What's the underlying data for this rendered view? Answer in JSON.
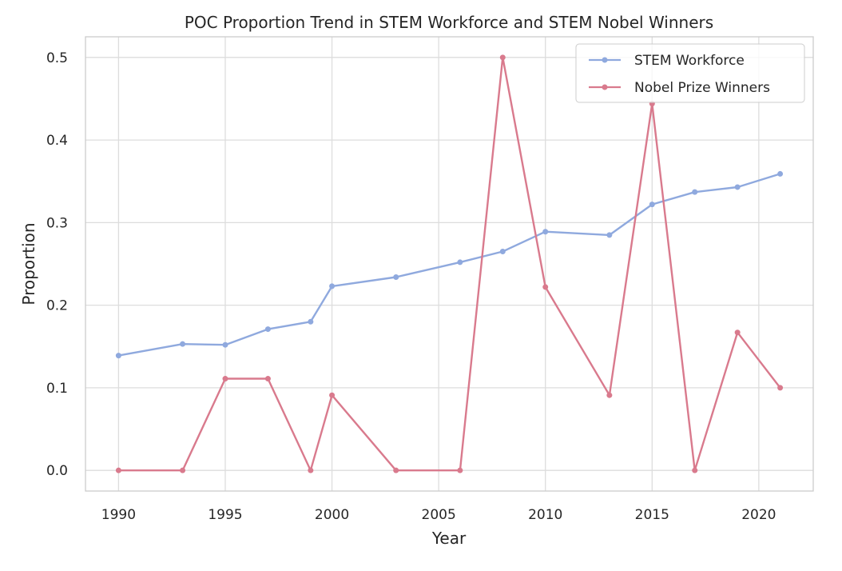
{
  "chart_data": {
    "type": "line",
    "title": "POC Proportion Trend in STEM Workforce and STEM Nobel Winners",
    "xlabel": "Year",
    "ylabel": "Proportion",
    "xlim": [
      1988.45,
      2022.55
    ],
    "ylim": [
      -0.025,
      0.525
    ],
    "xticks": [
      1990,
      1995,
      2000,
      2005,
      2010,
      2015,
      2020
    ],
    "yticks": [
      "0.0",
      "0.1",
      "0.2",
      "0.3",
      "0.4",
      "0.5"
    ],
    "grid": true,
    "legend_position": "top-right",
    "series": [
      {
        "name": "STEM Workforce",
        "color": "#8fa9de",
        "x": [
          1990,
          1993,
          1995,
          1997,
          1999,
          2000,
          2003,
          2006,
          2008,
          2010,
          2013,
          2015,
          2017,
          2019,
          2021
        ],
        "values": [
          0.139,
          0.153,
          0.152,
          0.171,
          0.18,
          0.223,
          0.234,
          0.252,
          0.265,
          0.289,
          0.285,
          0.322,
          0.337,
          0.343,
          0.359
        ]
      },
      {
        "name": "Nobel Prize Winners",
        "color": "#d97a8d",
        "x": [
          1990,
          1993,
          1995,
          1997,
          1999,
          2000,
          2003,
          2006,
          2008,
          2010,
          2013,
          2015,
          2017,
          2019,
          2021
        ],
        "values": [
          0.0,
          0.0,
          0.111,
          0.111,
          0.0,
          0.091,
          0.0,
          0.0,
          0.5,
          0.222,
          0.091,
          0.444,
          0.0,
          0.167,
          0.1
        ]
      }
    ]
  }
}
